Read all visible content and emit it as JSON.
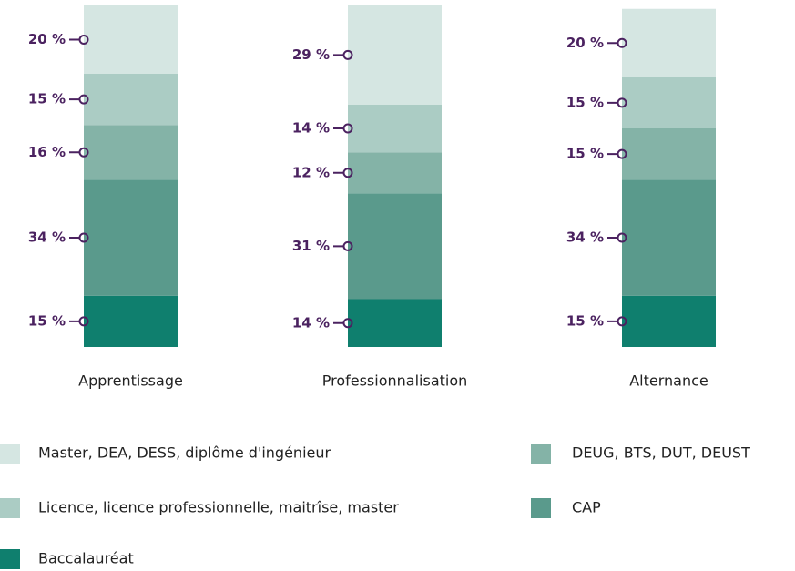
{
  "chart_data": {
    "type": "stacked_bar",
    "categories": [
      "Apprentissage",
      "Professionnalisation",
      "Alternance"
    ],
    "ylim": [
      0,
      100
    ],
    "series": [
      {
        "name": "Baccalauréat",
        "color": "#0f7f6e",
        "values": [
          15,
          14,
          15
        ],
        "value_labels": [
          "15 %",
          "14 %",
          "15 %"
        ]
      },
      {
        "name": "CAP",
        "color": "#5a9a8c",
        "values": [
          34,
          31,
          34
        ],
        "value_labels": [
          "34 %",
          "31 %",
          "34 %"
        ]
      },
      {
        "name": "DEUG, BTS, DUT, DEUST",
        "color": "#84b3a7",
        "values": [
          16,
          12,
          15
        ],
        "value_labels": [
          "16 %",
          "12 %",
          "15 %"
        ]
      },
      {
        "name": "Licence, licence professionnelle, maitrîse, master",
        "color": "#abccc4",
        "values": [
          15,
          14,
          15
        ],
        "value_labels": [
          "15 %",
          "14 %",
          "15 %"
        ]
      },
      {
        "name": "Master, DEA, DESS, diplôme d'ingénieur",
        "color": "#d5e6e2",
        "values": [
          20,
          29,
          20
        ],
        "value_labels": [
          "20 %",
          "29 %",
          "20 %"
        ]
      }
    ]
  }
}
